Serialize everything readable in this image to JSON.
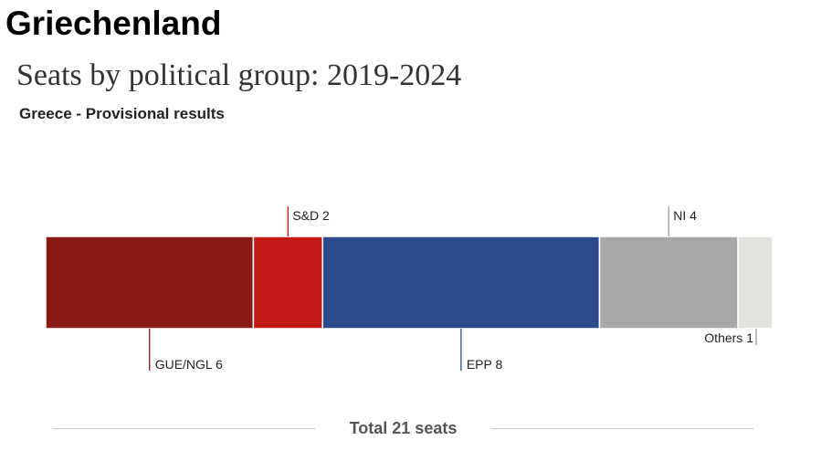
{
  "header": {
    "heading": "Griechenland"
  },
  "chart_data": {
    "type": "bar",
    "orientation": "horizontal-stacked",
    "title": "Seats by political group: 2019-2024",
    "subtitle": "Greece - Provisional results",
    "total_label": "Total 21 seats",
    "total": 21,
    "series": [
      {
        "name": "GUE/NGL",
        "value": 6,
        "label": "GUE/NGL 6",
        "color": "#8b1a14",
        "label_side": "below"
      },
      {
        "name": "S&D",
        "value": 2,
        "label": "S&D 2",
        "color": "#c21b17",
        "label_side": "above"
      },
      {
        "name": "EPP",
        "value": 8,
        "label": "EPP 8",
        "color": "#2a4a8c",
        "label_side": "below"
      },
      {
        "name": "NI",
        "value": 4,
        "label": "NI 4",
        "color": "#a8a8a8",
        "label_side": "above"
      },
      {
        "name": "Others",
        "value": 1,
        "label": "Others 1",
        "color": "#e3e2de",
        "label_side": "below"
      }
    ]
  }
}
